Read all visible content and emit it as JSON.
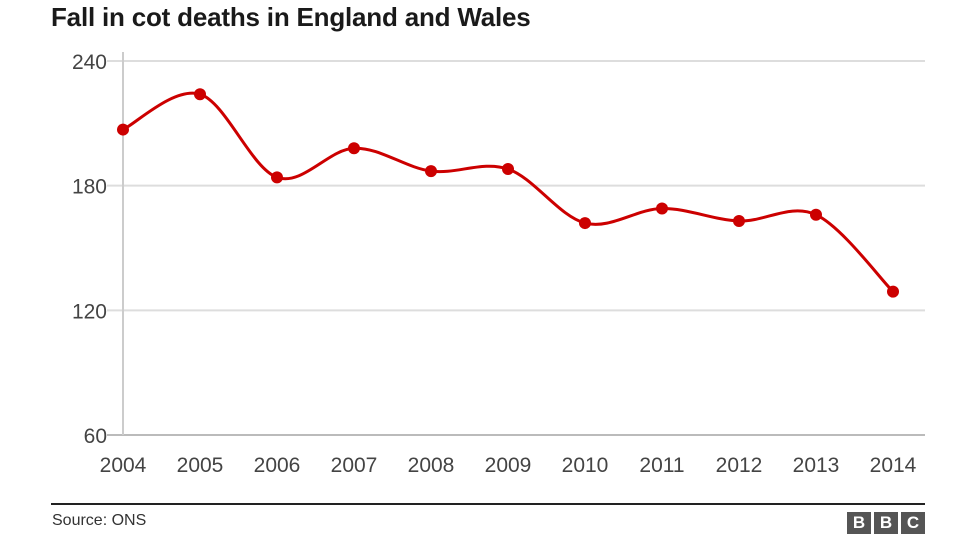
{
  "chart_data": {
    "type": "line",
    "title": "Fall in cot deaths in England and Wales",
    "xlabel": "",
    "ylabel": "",
    "x": [
      "2004",
      "2005",
      "2006",
      "2007",
      "2008",
      "2009",
      "2010",
      "2011",
      "2012",
      "2013",
      "2014"
    ],
    "series": [
      {
        "name": "Cot deaths",
        "values": [
          207,
          224,
          184,
          198,
          187,
          188,
          162,
          169,
          163,
          166,
          129
        ]
      }
    ],
    "ylim": [
      60,
      240
    ],
    "yticks": [
      60,
      120,
      180,
      240
    ],
    "grid": true,
    "line_color": "#cc0000",
    "grid_color": "#dddddd"
  },
  "footer": {
    "source": "Source: ONS",
    "logo": [
      "B",
      "B",
      "C"
    ]
  }
}
